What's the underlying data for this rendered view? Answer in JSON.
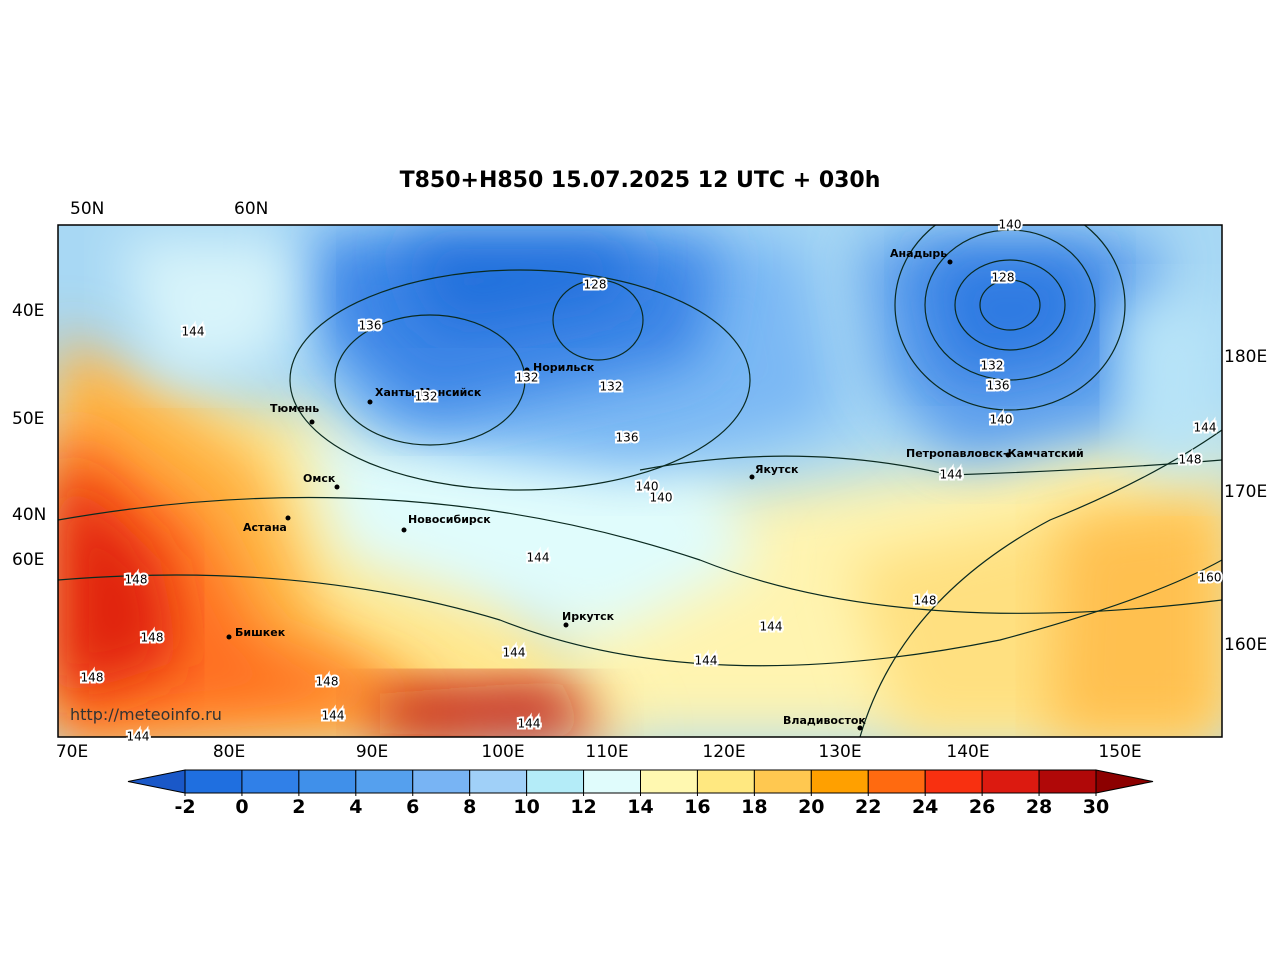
{
  "title": "T850+H850 15.07.2025 12 UTC + 030h",
  "url": "http://meteoinfo.ru",
  "top_labels": [
    "50N",
    "60N"
  ],
  "left_labels": [
    "40E",
    "50E",
    "40N",
    "60E"
  ],
  "right_labels": [
    "180E",
    "170E",
    "160E"
  ],
  "bottom_labels": [
    "70E",
    "80E",
    "90E",
    "100E",
    "110E",
    "120E",
    "130E",
    "140E",
    "150E"
  ],
  "cities": [
    "Норильск",
    "Ханты-Мансийск",
    "Тюмень",
    "Омск",
    "Астана",
    "Новосибирск",
    "Бишкек",
    "Иркутск",
    "Якутск",
    "Анадырь",
    "Петропавловск-Камчатский",
    "Владивосток"
  ],
  "contour_labels": [
    140,
    128,
    136,
    132,
    132,
    132,
    136,
    140,
    140,
    144,
    144,
    144,
    148,
    144,
    140,
    136,
    132,
    128,
    148,
    148,
    148,
    148,
    144,
    144,
    144,
    144,
    144,
    148,
    160,
    144
  ],
  "colorbar": {
    "ticks": [
      -2,
      0,
      2,
      4,
      6,
      8,
      10,
      12,
      14,
      16,
      18,
      20,
      22,
      24,
      26,
      28,
      30
    ],
    "colors": [
      "#1a58c8",
      "#1f6fe0",
      "#3080e8",
      "#4090ea",
      "#55a0ee",
      "#78b4f4",
      "#a0d0f8",
      "#b4ecf8",
      "#e0fcfc",
      "#fff8b0",
      "#ffe880",
      "#ffc850",
      "#ffa000",
      "#ff6a10",
      "#f83010",
      "#dc1a10",
      "#b00808",
      "#8c0000"
    ]
  }
}
